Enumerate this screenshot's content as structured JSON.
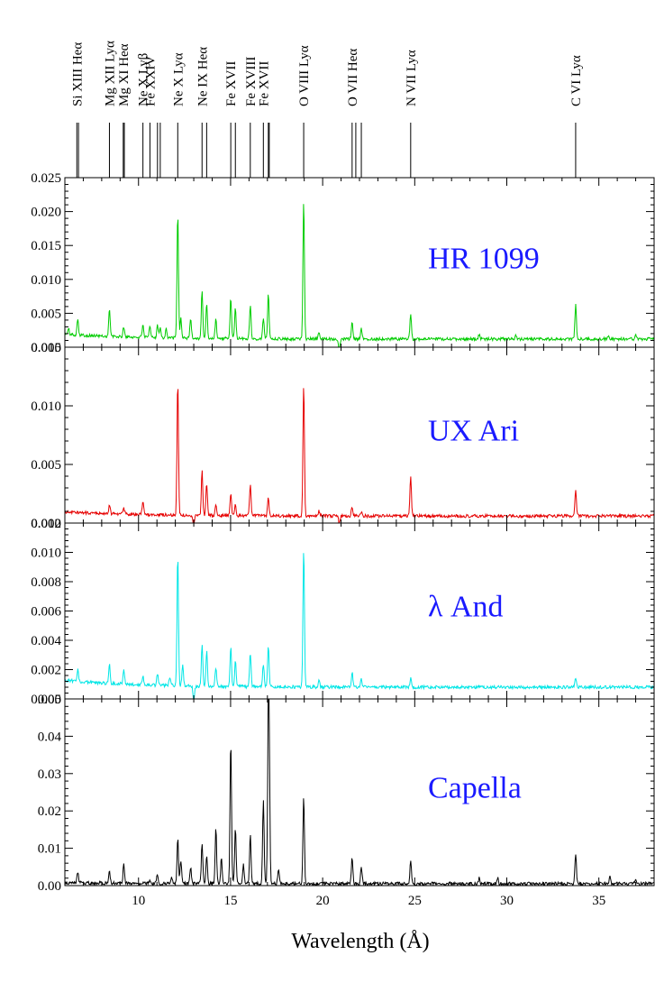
{
  "chart_data": {
    "type": "line",
    "x_range": [
      6,
      38
    ],
    "x_ticks": [
      10,
      15,
      20,
      25,
      30,
      35
    ],
    "xlabel": "Wavelength (Å)",
    "line_ids": [
      {
        "name": "Si XIII Heα",
        "x": [
          6.65,
          6.74
        ]
      },
      {
        "name": "Mg XII Lyα",
        "x": [
          8.42
        ]
      },
      {
        "name": "Mg XI Heα",
        "x": [
          9.17,
          9.23
        ]
      },
      {
        "name": "Ne X Lyβ",
        "x": [
          10.24
        ]
      },
      {
        "name": "Fe XXIV",
        "x": [
          10.62,
          11.03,
          11.18
        ]
      },
      {
        "name": "Ne X Lyα",
        "x": [
          12.13
        ]
      },
      {
        "name": "Ne IX Heα",
        "x": [
          13.45,
          13.7
        ]
      },
      {
        "name": "Fe XVII",
        "x": [
          15.01,
          15.26
        ]
      },
      {
        "name": "Fe XVIII",
        "x": [
          16.07
        ]
      },
      {
        "name": "Fe XVII",
        "x": [
          16.78,
          17.05,
          17.1
        ]
      },
      {
        "name": "O VIII Lyα",
        "x": [
          18.97
        ]
      },
      {
        "name": "O VII Heα",
        "x": [
          21.6,
          21.8,
          22.1
        ]
      },
      {
        "name": "N VII Lyα",
        "x": [
          24.78
        ]
      },
      {
        "name": "C VI Lyα",
        "x": [
          33.74
        ]
      }
    ],
    "panels": [
      {
        "name": "HR 1099",
        "color": "#00cc00",
        "ylim": [
          0,
          0.025
        ],
        "y_ticks": [
          "0.000",
          "0.005",
          "0.010",
          "0.015",
          "0.020",
          "0.025"
        ],
        "baseline": 0.0012,
        "lines": [
          [
            6.2,
            0.0008
          ],
          [
            6.7,
            0.0025
          ],
          [
            8.42,
            0.004
          ],
          [
            9.2,
            0.0015
          ],
          [
            10.24,
            0.002
          ],
          [
            10.62,
            0.0016
          ],
          [
            11.03,
            0.002
          ],
          [
            11.18,
            0.0016
          ],
          [
            11.5,
            0.0014
          ],
          [
            12.13,
            0.0185
          ],
          [
            12.3,
            0.003
          ],
          [
            12.83,
            0.003
          ],
          [
            13.45,
            0.007
          ],
          [
            13.7,
            0.005
          ],
          [
            14.2,
            0.003
          ],
          [
            15.01,
            0.006
          ],
          [
            15.26,
            0.0045
          ],
          [
            16.07,
            0.005
          ],
          [
            16.78,
            0.003
          ],
          [
            17.05,
            0.0068
          ],
          [
            18.97,
            0.0205
          ],
          [
            19.8,
            0.001
          ],
          [
            20.9,
            -0.0016
          ],
          [
            21.6,
            0.0027
          ],
          [
            22.1,
            0.0015
          ],
          [
            24.78,
            0.0038
          ],
          [
            28.5,
            0.0007
          ],
          [
            30.5,
            0.0005
          ],
          [
            33.74,
            0.0051
          ],
          [
            35.5,
            0.0004
          ],
          [
            37,
            0.0006
          ]
        ]
      },
      {
        "name": "UX Ari",
        "color": "#e60000",
        "ylim": [
          0,
          0.015
        ],
        "y_ticks": [
          "0.000",
          "0.005",
          "0.010",
          "0.015"
        ],
        "baseline": 0.0006,
        "lines": [
          [
            8.42,
            0.0008
          ],
          [
            9.2,
            0.0005
          ],
          [
            10.24,
            0.0012
          ],
          [
            12.13,
            0.0114
          ],
          [
            13.0,
            -0.0009
          ],
          [
            13.45,
            0.0038
          ],
          [
            13.7,
            0.0027
          ],
          [
            14.2,
            0.0009
          ],
          [
            15.01,
            0.0018
          ],
          [
            15.26,
            0.001
          ],
          [
            16.07,
            0.0027
          ],
          [
            17.05,
            0.0015
          ],
          [
            18.97,
            0.0111
          ],
          [
            19.8,
            0.0004
          ],
          [
            20.9,
            -0.0006
          ],
          [
            21.6,
            0.0008
          ],
          [
            22.1,
            0.0004
          ],
          [
            24.78,
            0.0033
          ],
          [
            33.74,
            0.0021
          ]
        ]
      },
      {
        "name": "λ And",
        "color": "#00e6e6",
        "ylim": [
          0,
          0.012
        ],
        "y_ticks": [
          "0.000",
          "0.002",
          "0.004",
          "0.006",
          "0.008",
          "0.010",
          "0.012"
        ],
        "baseline": 0.0008,
        "lines": [
          [
            6.7,
            0.0008
          ],
          [
            8.42,
            0.0013
          ],
          [
            9.2,
            0.001
          ],
          [
            10.24,
            0.0006
          ],
          [
            11.03,
            0.0008
          ],
          [
            11.7,
            0.0006
          ],
          [
            12.13,
            0.0089
          ],
          [
            12.4,
            0.0015
          ],
          [
            13.0,
            -0.0011
          ],
          [
            13.45,
            0.0029
          ],
          [
            13.7,
            0.0024
          ],
          [
            14.2,
            0.0013
          ],
          [
            15.01,
            0.0027
          ],
          [
            15.26,
            0.0017
          ],
          [
            16.07,
            0.0023
          ],
          [
            16.78,
            0.0015
          ],
          [
            17.05,
            0.0028
          ],
          [
            18.97,
            0.0095
          ],
          [
            19.8,
            0.0005
          ],
          [
            21.6,
            0.001
          ],
          [
            22.1,
            0.0005
          ],
          [
            24.78,
            0.0006
          ],
          [
            33.74,
            0.0006
          ]
        ]
      },
      {
        "name": "Capella",
        "color": "#000000",
        "ylim": [
          0,
          0.05
        ],
        "y_ticks": [
          "0.00",
          "0.01",
          "0.02",
          "0.03",
          "0.04",
          "0.05"
        ],
        "baseline": 0.0005,
        "lines": [
          [
            6.7,
            0.003
          ],
          [
            8.42,
            0.003
          ],
          [
            9.2,
            0.005
          ],
          [
            10.62,
            0.001
          ],
          [
            11.03,
            0.0025
          ],
          [
            11.8,
            0.0015
          ],
          [
            12.13,
            0.012
          ],
          [
            12.3,
            0.006
          ],
          [
            12.83,
            0.0045
          ],
          [
            13.45,
            0.011
          ],
          [
            13.7,
            0.0075
          ],
          [
            14.2,
            0.015
          ],
          [
            14.5,
            0.007
          ],
          [
            15.01,
            0.0385
          ],
          [
            15.26,
            0.015
          ],
          [
            15.7,
            0.005
          ],
          [
            16.07,
            0.013
          ],
          [
            16.78,
            0.022
          ],
          [
            17.05,
            0.0415
          ],
          [
            17.1,
            0.026
          ],
          [
            17.6,
            0.004
          ],
          [
            18.97,
            0.0235
          ],
          [
            21.6,
            0.007
          ],
          [
            22.1,
            0.0045
          ],
          [
            24.78,
            0.0065
          ],
          [
            28.5,
            0.0015
          ],
          [
            29.5,
            0.0015
          ],
          [
            33.74,
            0.0083
          ],
          [
            35.6,
            0.002
          ],
          [
            37,
            0.0012
          ]
        ]
      }
    ]
  }
}
